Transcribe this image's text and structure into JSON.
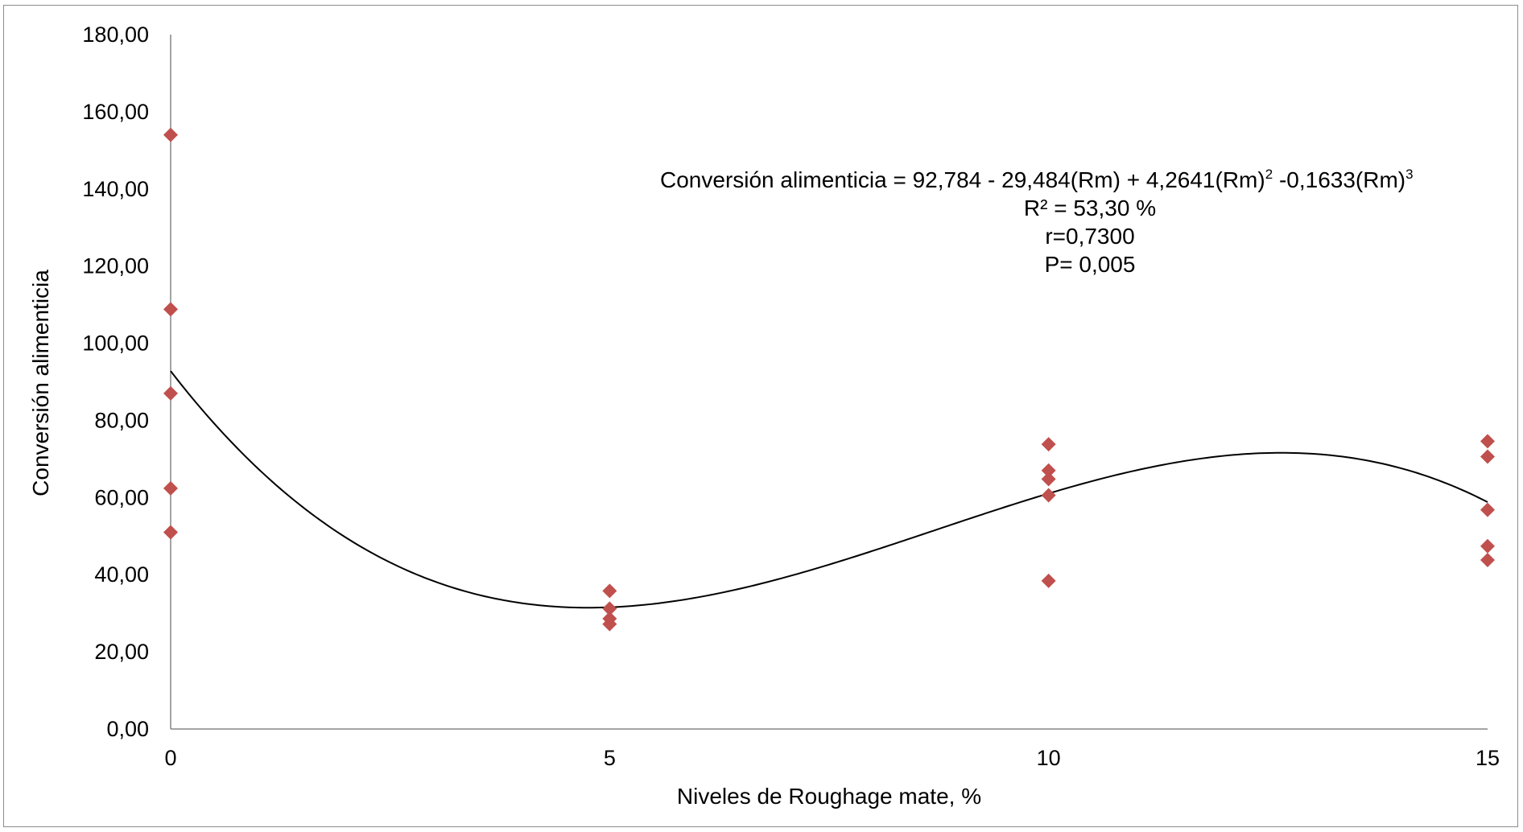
{
  "chart_data": {
    "type": "scatter",
    "xlabel": "Niveles de Roughage mate, %",
    "ylabel": "Conversión alimenticia",
    "xlim": [
      0,
      15
    ],
    "ylim": [
      0,
      180
    ],
    "x_ticks": [
      0,
      5,
      10,
      15
    ],
    "x_tick_labels": [
      "0",
      "5",
      "10",
      "15"
    ],
    "y_ticks": [
      0,
      20,
      40,
      60,
      80,
      100,
      120,
      140,
      160,
      180
    ],
    "y_tick_labels": [
      "0,00",
      "20,00",
      "40,00",
      "60,00",
      "80,00",
      "100,00",
      "120,00",
      "140,00",
      "160,00",
      "180,00"
    ],
    "grid": false,
    "series": [
      {
        "color": "#c0504d",
        "marker": "diamond",
        "points": [
          [
            0,
            154.0
          ],
          [
            0,
            108.8
          ],
          [
            0,
            87.0
          ],
          [
            0,
            62.4
          ],
          [
            0,
            51.0
          ],
          [
            5,
            35.8
          ],
          [
            5,
            31.2
          ],
          [
            5,
            28.6
          ],
          [
            5,
            27.2
          ],
          [
            10,
            73.8
          ],
          [
            10,
            67.0
          ],
          [
            10,
            64.8
          ],
          [
            10,
            60.6
          ],
          [
            10,
            38.4
          ],
          [
            15,
            74.6
          ],
          [
            15,
            70.6
          ],
          [
            15,
            56.8
          ],
          [
            15,
            47.4
          ],
          [
            15,
            43.8
          ]
        ]
      }
    ],
    "trendline": {
      "type": "polynomial",
      "color": "#000000",
      "coefficients": [
        92.784,
        -29.484,
        4.2641,
        -0.1633
      ],
      "x_range": [
        0,
        15
      ]
    },
    "annotation": {
      "equation_parts": [
        "Conversión alimenticia = 92,784 - 29,484(Rm) + 4,2641(Rm)",
        "2",
        " -0,1633(Rm)",
        "3"
      ],
      "r2": "R² = 53,30 %",
      "r": "r=0,7300",
      "p": "P= 0,005"
    }
  }
}
